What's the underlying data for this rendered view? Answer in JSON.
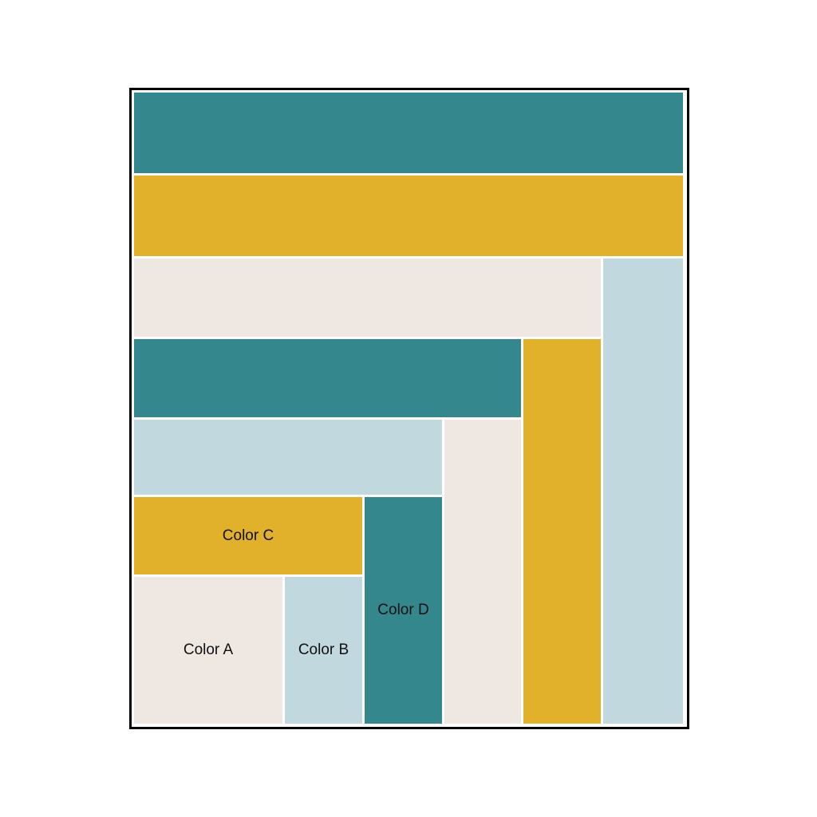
{
  "quilt": {
    "palette": {
      "color_a": "#efe7e1",
      "color_b": "#c1d8de",
      "color_c": "#e2b12b",
      "color_d": "#33878d"
    },
    "labels": {
      "color_a": "Color A",
      "color_b": "Color B",
      "color_c": "Color C",
      "color_d": "Color D"
    }
  }
}
